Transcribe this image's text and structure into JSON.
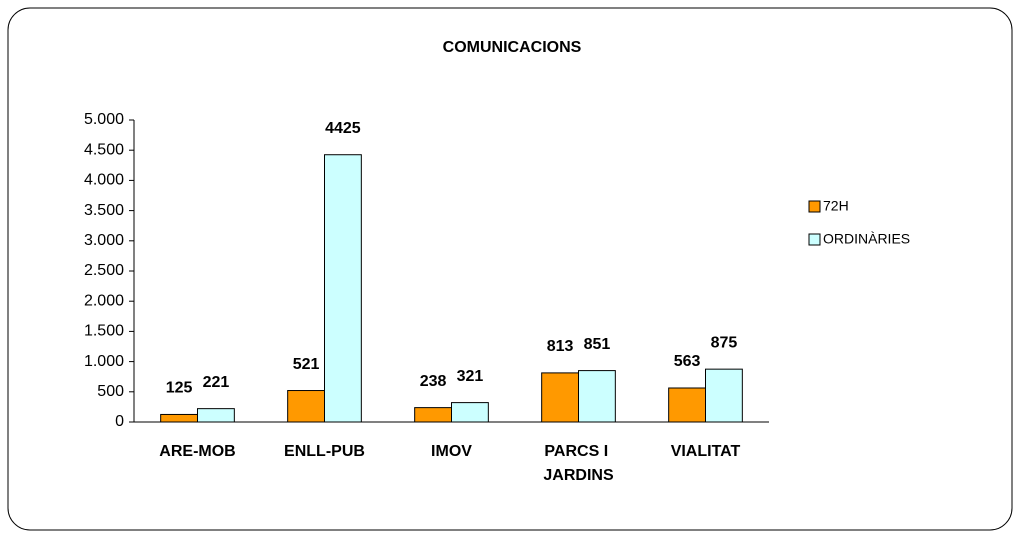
{
  "chart_data": {
    "type": "bar",
    "title": "COMUNICACIONS",
    "categories": [
      "ARE-MOB",
      "ENLL-PUB",
      "IMOV",
      "PARCS I JARDINS",
      "VIALITAT"
    ],
    "series": [
      {
        "name": "72H",
        "color": "#ff9900",
        "values": [
          125,
          521,
          238,
          813,
          563
        ]
      },
      {
        "name": "ORDINÀRIES",
        "color": "#ccffff",
        "values": [
          221,
          4425,
          321,
          851,
          875
        ]
      }
    ],
    "ylim": [
      0,
      5000
    ],
    "yticks": [
      0,
      500,
      {
        "value": 1000,
        "label": "1.000"
      },
      {
        "value": 1500,
        "label": "1.500"
      },
      {
        "value": 2000,
        "label": "2.000"
      },
      {
        "value": 2500,
        "label": "2.500"
      },
      {
        "value": 3000,
        "label": "3.000"
      },
      {
        "value": 3500,
        "label": "3.500"
      },
      {
        "value": 4000,
        "label": "4.000"
      },
      {
        "value": 4500,
        "label": "4.500"
      },
      {
        "value": 5000,
        "label": "5.000"
      }
    ],
    "legend": "right"
  }
}
